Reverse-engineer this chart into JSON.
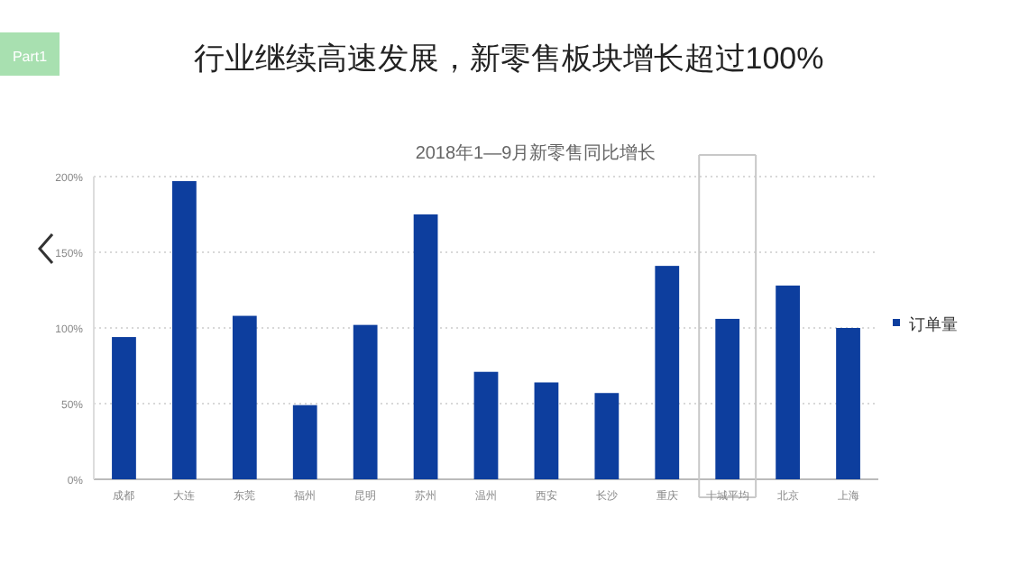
{
  "chart_data": {
    "type": "bar",
    "title": "行业继续高速发展，新零售板块增长超过100%",
    "subtitle": "2018年1—9月新零售同比增长",
    "annotations": [
      "Part1"
    ],
    "categories": [
      "成都",
      "大连",
      "东莞",
      "福州",
      "昆明",
      "苏州",
      "温州",
      "西安",
      "长沙",
      "重庆",
      "十城平均",
      "北京",
      "上海"
    ],
    "series": [
      {
        "name": "订单量",
        "color": "#0d3e9e",
        "values": [
          94,
          197,
          108,
          49,
          102,
          175,
          71,
          64,
          57,
          141,
          106,
          128,
          100
        ]
      }
    ],
    "ylim": [
      0,
      200
    ],
    "yticks": [
      {
        "value": 0,
        "label": "0%"
      },
      {
        "value": 50,
        "label": "50%"
      },
      {
        "value": 100,
        "label": "100%"
      },
      {
        "value": 150,
        "label": "150%"
      },
      {
        "value": 200,
        "label": "200%"
      }
    ],
    "grid": "y",
    "legend": "right"
  }
}
